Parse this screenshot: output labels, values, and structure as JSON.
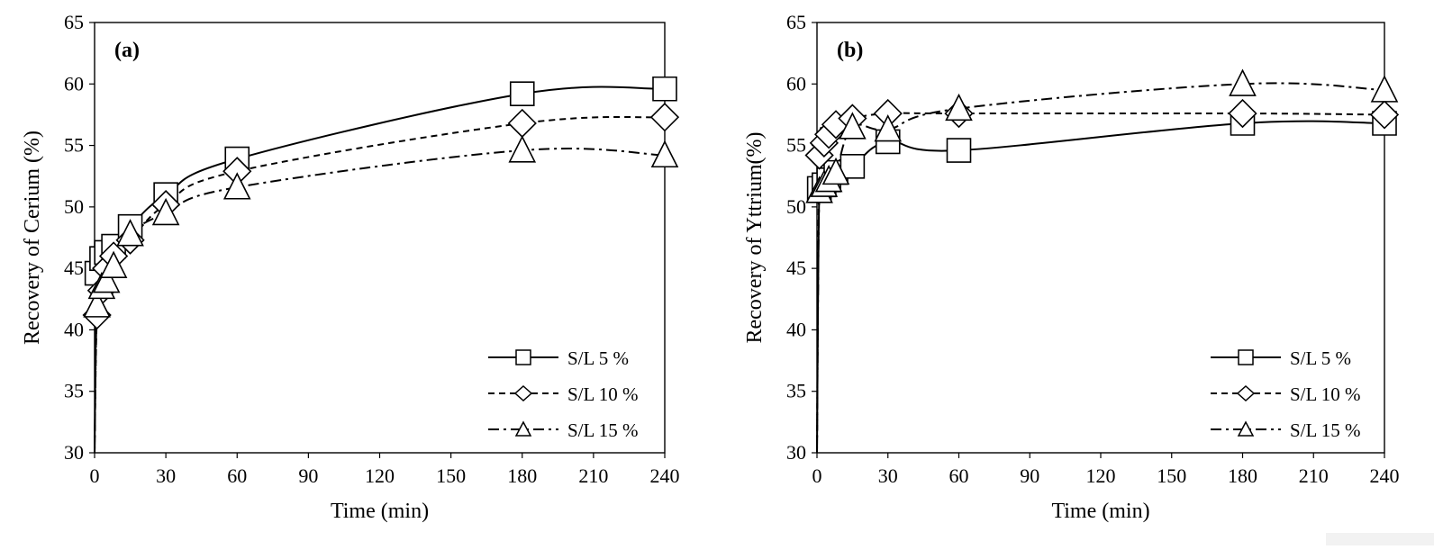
{
  "chart_data": [
    {
      "type": "line",
      "panel_label": "(a)",
      "xlabel": "Time (min)",
      "ylabel": "Recovery of Cerium (%)",
      "xlim": [
        0,
        240
      ],
      "ylim": [
        30,
        65
      ],
      "x_ticks": [
        "0",
        "30",
        "60",
        "90",
        "120",
        "150",
        "180",
        "210",
        "240"
      ],
      "y_ticks": [
        "30",
        "35",
        "40",
        "45",
        "50",
        "55",
        "60",
        "65"
      ],
      "grid": false,
      "legend_position": "bottom-right",
      "x": [
        0,
        1,
        3,
        5,
        8,
        15,
        30,
        60,
        180,
        240
      ],
      "series": [
        {
          "name": "S/L 5 %",
          "marker": "square",
          "line": "solid",
          "values": [
            30,
            44.6,
            45.8,
            46.3,
            46.8,
            48.4,
            51.0,
            53.9,
            59.2,
            59.6
          ]
        },
        {
          "name": "S/L 10 %",
          "marker": "diamond",
          "line": "dashed",
          "values": [
            30,
            41.2,
            43.2,
            45.0,
            46.0,
            47.3,
            50.2,
            52.9,
            56.8,
            57.3
          ]
        },
        {
          "name": "S/L 15 %",
          "marker": "triangle",
          "line": "dashdot",
          "values": [
            30,
            42.0,
            43.5,
            44.0,
            45.2,
            47.8,
            49.5,
            51.6,
            54.6,
            54.2
          ]
        }
      ]
    },
    {
      "type": "line",
      "panel_label": "(b)",
      "xlabel": "Time (min)",
      "ylabel": "Recovery of Yttrium(%)",
      "xlim": [
        0,
        240
      ],
      "ylim": [
        30,
        65
      ],
      "x_ticks": [
        "0",
        "30",
        "60",
        "90",
        "120",
        "150",
        "180",
        "210",
        "240"
      ],
      "y_ticks": [
        "30",
        "35",
        "40",
        "45",
        "50",
        "55",
        "60",
        "65"
      ],
      "grid": false,
      "legend_position": "bottom-right",
      "x": [
        0,
        1,
        3,
        5,
        8,
        15,
        30,
        60,
        180,
        240
      ],
      "series": [
        {
          "name": "S/L 5 %",
          "marker": "square",
          "line": "solid",
          "values": [
            30,
            51.5,
            51.8,
            52.2,
            52.8,
            53.3,
            55.3,
            54.6,
            56.8,
            56.8
          ]
        },
        {
          "name": "S/L 10 %",
          "marker": "diamond",
          "line": "dashed",
          "values": [
            30,
            54.2,
            55.2,
            55.9,
            56.7,
            57.2,
            57.6,
            57.6,
            57.6,
            57.5
          ]
        },
        {
          "name": "S/L 15 %",
          "marker": "triangle",
          "line": "dashdot",
          "values": [
            30,
            51.3,
            51.8,
            52.2,
            52.8,
            56.5,
            56.3,
            58.0,
            60.0,
            59.5
          ]
        }
      ]
    }
  ]
}
